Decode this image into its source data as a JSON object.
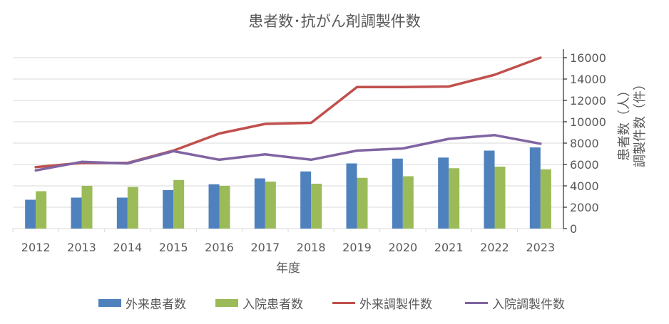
{
  "chart_data": {
    "type": "bar",
    "title": "患者数･抗がん剤調製件数",
    "xlabel": "年度",
    "ylabel": "患者数（人）\n調製件数（件）",
    "ylabel_lines": [
      "患者数（人）",
      "調製件数（件）"
    ],
    "ylim": [
      0,
      16000
    ],
    "yticks": [
      0,
      2000,
      4000,
      6000,
      8000,
      10000,
      12000,
      14000,
      16000
    ],
    "grid": true,
    "legend_position": "bottom",
    "categories": [
      "2012",
      "2013",
      "2014",
      "2015",
      "2016",
      "2017",
      "2018",
      "2019",
      "2020",
      "2021",
      "2022",
      "2023"
    ],
    "series": [
      {
        "name": "外来患者数",
        "kind": "bar",
        "color": "#4F81BD",
        "values": [
          2700,
          2900,
          2900,
          3600,
          4150,
          4700,
          5350,
          6100,
          6550,
          6650,
          7300,
          7600
        ]
      },
      {
        "name": "入院患者数",
        "kind": "bar",
        "color": "#9BBB59",
        "values": [
          3500,
          4000,
          3900,
          4550,
          4000,
          4400,
          4200,
          4750,
          4900,
          5650,
          5800,
          5550
        ]
      },
      {
        "name": "外来調製件数",
        "kind": "line",
        "color": "#C0504D",
        "values": [
          5750,
          6150,
          6150,
          7300,
          8900,
          9800,
          9900,
          13250,
          13250,
          13300,
          14400,
          16000
        ]
      },
      {
        "name": "入院調製件数",
        "kind": "line",
        "color": "#8064A2",
        "values": [
          5450,
          6250,
          6100,
          7250,
          6450,
          6950,
          6450,
          7300,
          7500,
          8400,
          8750,
          7950
        ]
      }
    ]
  }
}
